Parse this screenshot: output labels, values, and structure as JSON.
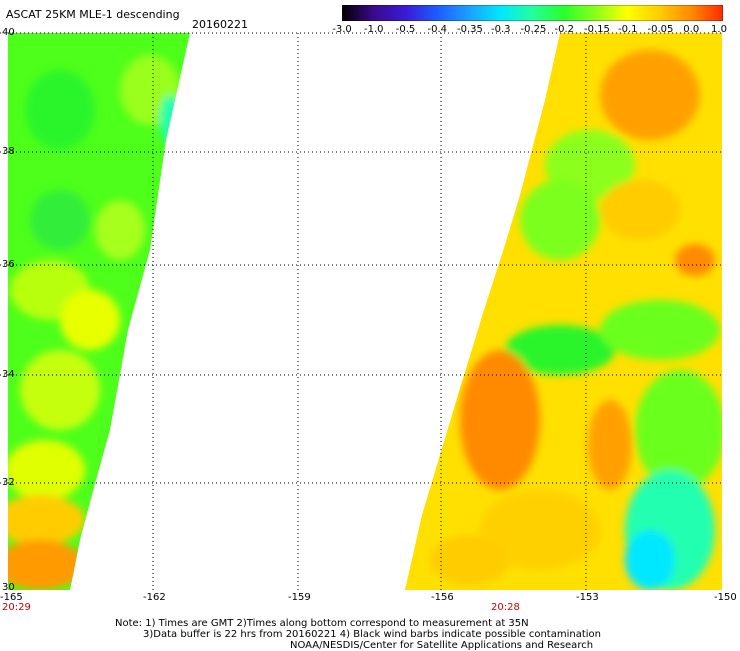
{
  "header": {
    "title": "ASCAT 25KM MLE-1 descending",
    "date": "20160221"
  },
  "colorbar": {
    "labels": [
      "-3.0",
      "-1.0",
      "-0.5",
      "-0.4",
      "-0.35",
      "-0.3",
      "-0.25",
      "-0.2",
      "-0.15",
      "-0.1",
      "-0.05",
      "0.0",
      "1.0"
    ],
    "colors": [
      "#000000",
      "#3a0a8c",
      "#3a1ad6",
      "#1e5cff",
      "#1aa0ff",
      "#00e8ff",
      "#22ff9a",
      "#2bff2b",
      "#8cff1a",
      "#ffff00",
      "#ffcc00",
      "#ff8a00",
      "#ff2a00"
    ]
  },
  "axes": {
    "lat_labels": [
      "40",
      "38",
      "36",
      "34",
      "32",
      "30"
    ],
    "lon_labels": [
      "-165",
      "-162",
      "-159",
      "-156",
      "-153",
      "-150"
    ]
  },
  "times": {
    "left_swath": "20:29",
    "right_swath": "20:28"
  },
  "notes": {
    "line1": "Note: 1) Times are GMT 2)Times along bottom correspond to measurement at 35N",
    "line2": "3)Data buffer is 22 hrs from 20160221 4) Black wind barbs indicate possible contamination",
    "line3": "NOAA/NESDIS/Center for Satellite Applications and Research"
  }
}
